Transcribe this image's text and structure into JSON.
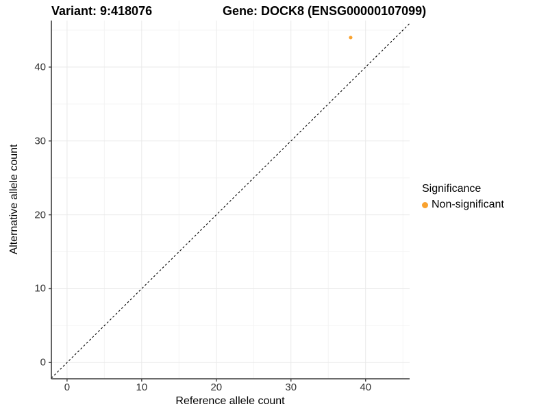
{
  "chart_data": {
    "type": "scatter",
    "titles": {
      "left": "Variant: 9:418076",
      "right": "Gene: DOCK8 (ENSG00000107099)"
    },
    "xlabel": "Reference allele count",
    "ylabel": "Alternative allele count",
    "xlim": [
      -2.1,
      45.9
    ],
    "ylim": [
      -2.2,
      46.3
    ],
    "x_major_ticks": [
      0,
      10,
      20,
      30,
      40
    ],
    "y_major_ticks": [
      0,
      10,
      20,
      30,
      40
    ],
    "x_minor_gridlines": [
      5,
      15,
      25,
      35,
      45
    ],
    "y_minor_gridlines": [
      5,
      15,
      25,
      35,
      45
    ],
    "grid": true,
    "points": [
      {
        "x": 38,
        "y": 44,
        "series": "Non-significant"
      }
    ],
    "identity_line": {
      "equation": "y = x",
      "style": "dashed"
    },
    "legend": {
      "position": "right",
      "title": "Significance",
      "items": [
        {
          "label": "Non-significant",
          "color": "#F9A22F"
        }
      ]
    },
    "colors": {
      "point": "#F9A22F",
      "grid_major": "#E9E9E9",
      "grid_minor": "#F4F4F4",
      "axis_line": "#3C3C3C",
      "dashed_line": "#000000",
      "tick_text": "#303030"
    }
  }
}
